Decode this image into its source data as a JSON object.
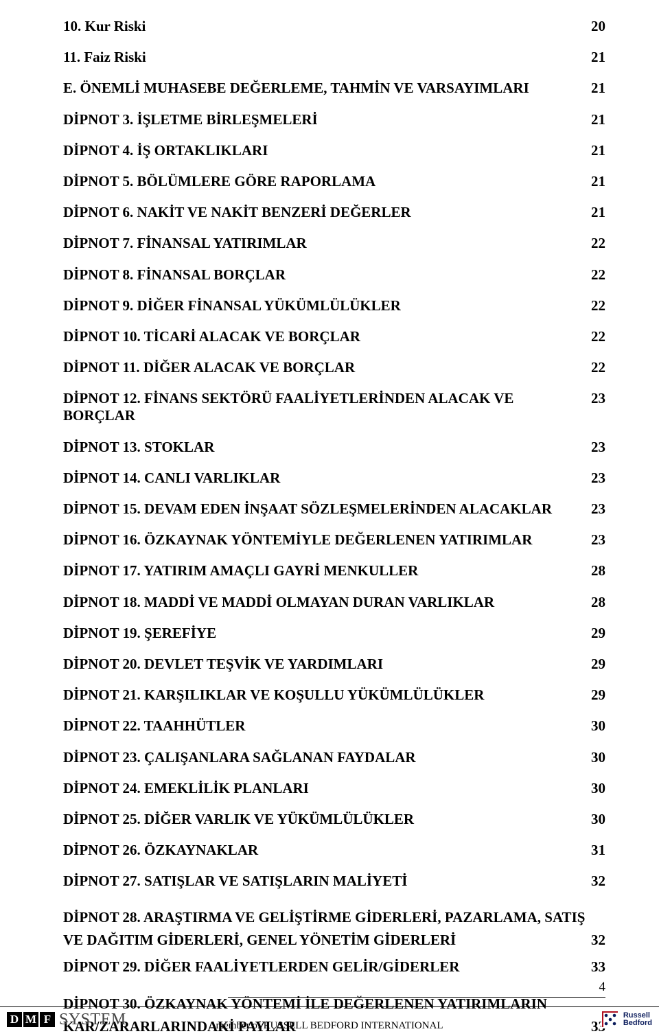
{
  "toc": [
    {
      "label": "10.  Kur Riski",
      "page": "20"
    },
    {
      "label": "11.  Faiz Riski",
      "page": "21"
    },
    {
      "label": "E.   ÖNEMLİ MUHASEBE DEĞERLEME, TAHMİN VE VARSAYIMLARI",
      "page": "21"
    },
    {
      "label": "DİPNOT 3. İŞLETME BİRLEŞMELERİ",
      "page": "21"
    },
    {
      "label": "DİPNOT 4. İŞ ORTAKLIKLARI",
      "page": "21"
    },
    {
      "label": "DİPNOT 5. BÖLÜMLERE GÖRE RAPORLAMA",
      "page": "21"
    },
    {
      "label": "DİPNOT 6. NAKİT VE NAKİT BENZERİ DEĞERLER",
      "page": "21"
    },
    {
      "label": "DİPNOT 7. FİNANSAL YATIRIMLAR",
      "page": "22"
    },
    {
      "label": "DİPNOT 8. FİNANSAL BORÇLAR",
      "page": "22"
    },
    {
      "label": "DİPNOT 9. DİĞER FİNANSAL YÜKÜMLÜLÜKLER",
      "page": "22"
    },
    {
      "label": "DİPNOT 10. TİCARİ ALACAK VE BORÇLAR",
      "page": "22"
    },
    {
      "label": "DİPNOT 11. DİĞER ALACAK VE BORÇLAR",
      "page": "22"
    },
    {
      "label": "DİPNOT 12. FİNANS SEKTÖRÜ FAALİYETLERİNDEN ALACAK VE BORÇLAR",
      "page": "23"
    },
    {
      "label": "DİPNOT 13. STOKLAR",
      "page": "23"
    },
    {
      "label": "DİPNOT 14. CANLI VARLIKLAR",
      "page": "23"
    },
    {
      "label": "DİPNOT 15. DEVAM EDEN İNŞAAT SÖZLEŞMELERİNDEN ALACAKLAR",
      "page": "23"
    },
    {
      "label": "DİPNOT 16. ÖZKAYNAK YÖNTEMİYLE DEĞERLENEN YATIRIMLAR",
      "page": "23"
    },
    {
      "label": "DİPNOT 17. YATIRIM AMAÇLI GAYRİ MENKULLER",
      "page": "28"
    },
    {
      "label": "DİPNOT 18. MADDİ VE MADDİ OLMAYAN DURAN VARLIKLAR",
      "page": "28"
    },
    {
      "label": "DİPNOT 19. ŞEREFİYE",
      "page": "29"
    },
    {
      "label": "DİPNOT 20. DEVLET TEŞVİK VE YARDIMLARI",
      "page": "29"
    },
    {
      "label": "DİPNOT 21. KARŞILIKLAR VE KOŞULLU YÜKÜMLÜLÜKLER",
      "page": "29"
    },
    {
      "label": "DİPNOT 22. TAAHHÜTLER",
      "page": "30"
    },
    {
      "label": "DİPNOT 23. ÇALIŞANLARA SAĞLANAN FAYDALAR",
      "page": "30"
    },
    {
      "label": "DİPNOT 24. EMEKLİLİK PLANLARI",
      "page": "30"
    },
    {
      "label": "DİPNOT 25. DİĞER VARLIK VE YÜKÜMLÜLÜKLER",
      "page": "30"
    },
    {
      "label": "DİPNOT 26. ÖZKAYNAKLAR",
      "page": "31"
    },
    {
      "label": "DİPNOT 27. SATIŞLAR VE SATIŞLARIN MALİYETİ",
      "page": "32"
    }
  ],
  "wrap1": {
    "line1": "DİPNOT 28. ARAŞTIRMA VE GELİŞTİRME GİDERLERİ, PAZARLAMA, SATIŞ",
    "line2": "VE DAĞITIM GİDERLERİ, GENEL YÖNETİM GİDERLERİ",
    "page": "32"
  },
  "mid": {
    "label": "DİPNOT 29. DİĞER FAALİYETLERDEN GELİR/GİDERLER",
    "page": "33"
  },
  "wrap2": {
    "line1": "DİPNOT 30. ÖZKAYNAK YÖNTEMİ İLE DEĞERLENEN YATIRIMLARIN",
    "line2": "KAR/ZARARLARINDAKİ PAYLAR",
    "page": "33"
  },
  "pageNumber": "4",
  "footer": {
    "dmf": [
      "D",
      "M",
      "F"
    ],
    "system": "SYSTEM",
    "member": "member of  RUSSELL BEDFORD INTERNATIONAL",
    "rb1": "Russell",
    "rb2": "Bedford"
  },
  "colors": {
    "text": "#000000",
    "rbBlue": "#0b1c5c",
    "rbRed": "#b01020",
    "systemGray": "#444444",
    "bg": "#ffffff"
  }
}
